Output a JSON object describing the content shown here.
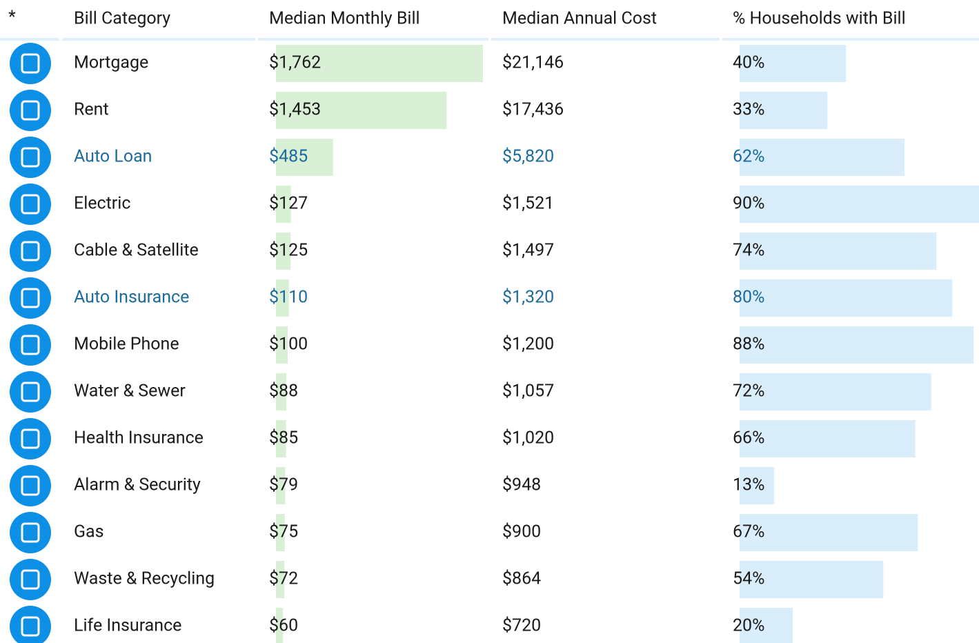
{
  "table": {
    "header": [
      "*",
      "Bill Category",
      "Median Monthly Bill",
      "Median Annual Cost",
      "% Households with Bill"
    ],
    "rows": [
      {
        "category": "Mortgage",
        "monthly": {
          "value": 1762,
          "label": "$1,762"
        },
        "annual": "$21,146",
        "households": {
          "value": 40,
          "label": "40%"
        },
        "highlight": false
      },
      {
        "category": "Rent",
        "monthly": {
          "value": 1453,
          "label": "$1,453"
        },
        "annual": "$17,436",
        "households": {
          "value": 33,
          "label": "33%"
        },
        "highlight": false
      },
      {
        "category": "Auto Loan",
        "monthly": {
          "value": 485,
          "label": "$485"
        },
        "annual": "$5,820",
        "households": {
          "value": 62,
          "label": "62%"
        },
        "highlight": true
      },
      {
        "category": "Electric",
        "monthly": {
          "value": 127,
          "label": "$127"
        },
        "annual": "$1,521",
        "households": {
          "value": 90,
          "label": "90%"
        },
        "highlight": false
      },
      {
        "category": "Cable & Satellite",
        "monthly": {
          "value": 125,
          "label": "$125"
        },
        "annual": "$1,497",
        "households": {
          "value": 74,
          "label": "74%"
        },
        "highlight": false
      },
      {
        "category": "Auto Insurance",
        "monthly": {
          "value": 110,
          "label": "$110"
        },
        "annual": "$1,320",
        "households": {
          "value": 80,
          "label": "80%"
        },
        "highlight": true
      },
      {
        "category": "Mobile Phone",
        "monthly": {
          "value": 100,
          "label": "$100"
        },
        "annual": "$1,200",
        "households": {
          "value": 88,
          "label": "88%"
        },
        "highlight": false
      },
      {
        "category": "Water & Sewer",
        "monthly": {
          "value": 88,
          "label": "$88"
        },
        "annual": "$1,057",
        "households": {
          "value": 72,
          "label": "72%"
        },
        "highlight": false
      },
      {
        "category": "Health Insurance",
        "monthly": {
          "value": 85,
          "label": "$85"
        },
        "annual": "$1,020",
        "households": {
          "value": 66,
          "label": "66%"
        },
        "highlight": false
      },
      {
        "category": "Alarm & Security",
        "monthly": {
          "value": 79,
          "label": "$79"
        },
        "annual": "$948",
        "households": {
          "value": 13,
          "label": "13%"
        },
        "highlight": false
      },
      {
        "category": "Gas",
        "monthly": {
          "value": 75,
          "label": "$75"
        },
        "annual": "$900",
        "households": {
          "value": 67,
          "label": "67%"
        },
        "highlight": false
      },
      {
        "category": "Waste & Recycling",
        "monthly": {
          "value": 72,
          "label": "$72"
        },
        "annual": "$864",
        "households": {
          "value": 54,
          "label": "54%"
        },
        "highlight": false
      },
      {
        "category": "Life Insurance",
        "monthly": {
          "value": 60,
          "label": "$60"
        },
        "annual": "$720",
        "households": {
          "value": 20,
          "label": "20%"
        },
        "highlight": false
      }
    ]
  }
}
